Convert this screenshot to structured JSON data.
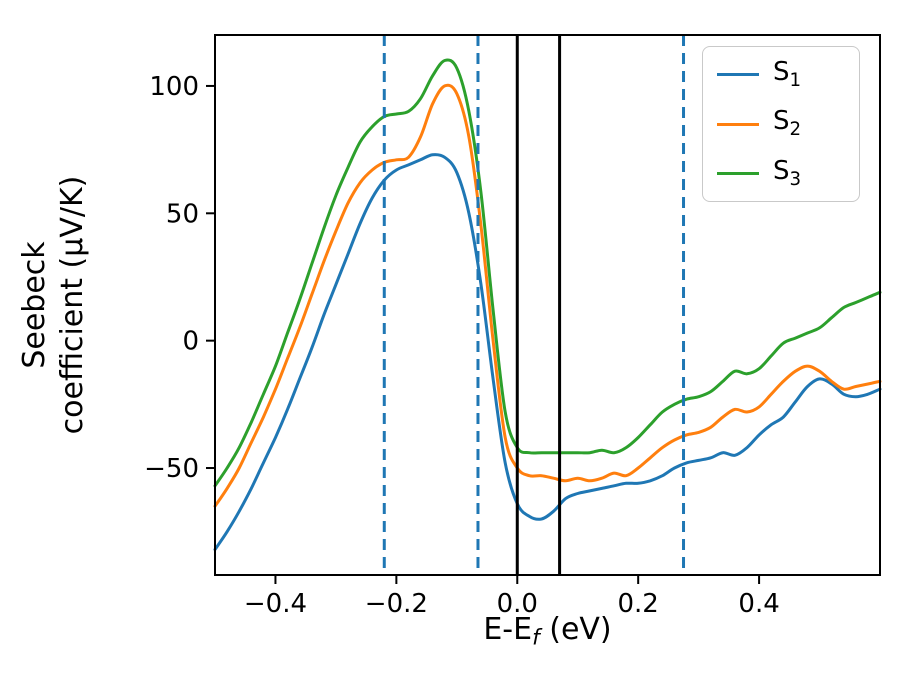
{
  "figure": {
    "background": "#ffffff",
    "xlabel": {
      "main": "E-E",
      "sub": "f",
      "unit": " (eV)"
    },
    "ylabel_line1": "Seebeck",
    "ylabel_line2": "coefficient (μV/K)"
  },
  "chart_data": {
    "type": "line",
    "title": "",
    "xlabel": "E-E_f (eV)",
    "ylabel": "Seebeck coefficient (μV/K)",
    "xlim": [
      -0.5,
      0.6
    ],
    "ylim": [
      -92,
      120
    ],
    "grid": false,
    "legend_position": "upper right",
    "xticks": [
      -0.4,
      -0.2,
      0.0,
      0.2,
      0.4
    ],
    "xtick_labels": [
      "−0.4",
      "−0.2",
      "0.0",
      "0.2",
      "0.4"
    ],
    "yticks": [
      -50,
      0,
      50,
      100
    ],
    "ytick_labels": [
      "−50",
      "0",
      "50",
      "100"
    ],
    "x": [
      -0.5,
      -0.48,
      -0.46,
      -0.44,
      -0.42,
      -0.4,
      -0.38,
      -0.36,
      -0.34,
      -0.32,
      -0.3,
      -0.28,
      -0.26,
      -0.24,
      -0.22,
      -0.2,
      -0.18,
      -0.16,
      -0.14,
      -0.12,
      -0.1,
      -0.08,
      -0.06,
      -0.04,
      -0.02,
      0,
      0.02,
      0.04,
      0.06,
      0.08,
      0.1,
      0.12,
      0.14,
      0.16,
      0.18,
      0.2,
      0.22,
      0.24,
      0.26,
      0.28,
      0.3,
      0.32,
      0.34,
      0.36,
      0.38,
      0.4,
      0.42,
      0.44,
      0.46,
      0.48,
      0.5,
      0.52,
      0.54,
      0.56,
      0.58,
      0.6
    ],
    "series": [
      {
        "id": "s1",
        "label_main": "S",
        "label_sub": "1",
        "color": "#1f77b4",
        "values": [
          -82,
          -75,
          -67,
          -58,
          -48,
          -38,
          -27,
          -15,
          -3,
          10,
          22,
          34,
          46,
          56,
          63,
          67,
          69,
          71,
          73,
          72,
          66,
          50,
          22,
          -15,
          -48,
          -64,
          -69,
          -70,
          -67,
          -62,
          -60,
          -59,
          -58,
          -57,
          -56,
          -56,
          -55,
          -53,
          -50,
          -48,
          -47,
          -46,
          -44,
          -45,
          -42,
          -37,
          -33,
          -30,
          -24,
          -18,
          -15,
          -17,
          -21,
          -22,
          -21,
          -19
        ]
      },
      {
        "id": "s2",
        "label_main": "S",
        "label_sub": "2",
        "color": "#ff7f0e",
        "values": [
          -65,
          -58,
          -50,
          -40,
          -30,
          -19,
          -7,
          5,
          18,
          31,
          43,
          54,
          62,
          67,
          70,
          71,
          72,
          80,
          93,
          100,
          97,
          80,
          45,
          0,
          -38,
          -50,
          -53,
          -53,
          -54,
          -55,
          -54,
          -55,
          -54,
          -52,
          -53,
          -50,
          -46,
          -42,
          -39,
          -37,
          -36,
          -34,
          -30,
          -27,
          -28,
          -26,
          -21,
          -16,
          -12,
          -10,
          -12,
          -16,
          -19,
          -18,
          -17,
          -16
        ]
      },
      {
        "id": "s3",
        "label_main": "S",
        "label_sub": "3",
        "color": "#2ca02c",
        "values": [
          -57,
          -50,
          -42,
          -32,
          -21,
          -10,
          3,
          16,
          30,
          44,
          57,
          68,
          78,
          84,
          88,
          89,
          90,
          95,
          104,
          110,
          107,
          90,
          58,
          12,
          -28,
          -42,
          -44,
          -44,
          -44,
          -44,
          -44,
          -44,
          -43,
          -44,
          -42,
          -38,
          -33,
          -28,
          -25,
          -23,
          -22,
          -20,
          -16,
          -12,
          -13,
          -11,
          -6,
          -1,
          1,
          3,
          5,
          9,
          13,
          15,
          17,
          19
        ]
      }
    ],
    "vlines": [
      {
        "x": -0.22,
        "style": "dashed",
        "color": "#1f77b4"
      },
      {
        "x": -0.065,
        "style": "dashed",
        "color": "#1f77b4"
      },
      {
        "x": 0.275,
        "style": "dashed",
        "color": "#1f77b4"
      },
      {
        "x": 0.0,
        "style": "solid",
        "color": "#000000"
      },
      {
        "x": 0.07,
        "style": "solid",
        "color": "#000000"
      }
    ]
  }
}
